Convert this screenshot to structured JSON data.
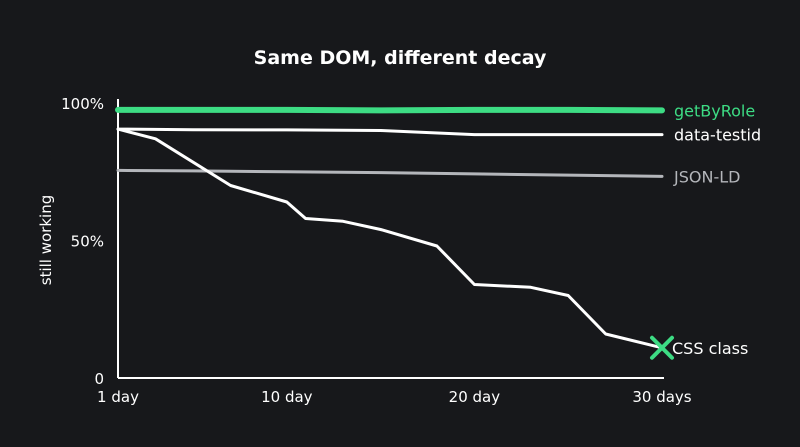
{
  "chart_data": {
    "type": "line",
    "title": "Same DOM, different decay",
    "xlabel": "",
    "ylabel": "still working",
    "xlim": [
      1,
      30
    ],
    "ylim": [
      0,
      100
    ],
    "x_ticks": [
      {
        "value": 1,
        "label": "1 day"
      },
      {
        "value": 10,
        "label": "10 day"
      },
      {
        "value": 20,
        "label": "20 day"
      },
      {
        "value": 30,
        "label": "30 days"
      }
    ],
    "y_ticks": [
      {
        "value": 0,
        "label": "0"
      },
      {
        "value": 50,
        "label": "50%"
      },
      {
        "value": 100,
        "label": "100%"
      }
    ],
    "grid": false,
    "legend": "inline-right",
    "series": [
      {
        "name": "getByRole",
        "color": "#3ddc84",
        "x": [
          1,
          5,
          10,
          15,
          20,
          25,
          30
        ],
        "y": [
          97.5,
          97.5,
          97.5,
          97.3,
          97.5,
          97.5,
          97.3
        ]
      },
      {
        "name": "data-testid",
        "color": "#ffffff",
        "x": [
          1,
          5,
          10,
          15,
          20,
          25,
          30
        ],
        "y": [
          90.5,
          90.3,
          90.2,
          90,
          88.5,
          88.5,
          88.5
        ]
      },
      {
        "name": "JSON-LD",
        "color": "#b4b6bb",
        "x": [
          1,
          5,
          10,
          15,
          20,
          25,
          30
        ],
        "y": [
          75.5,
          75.3,
          75,
          74.7,
          74.2,
          73.8,
          73.3
        ]
      },
      {
        "name": "CSS class",
        "color": "#ffffff",
        "marker": "x-icon",
        "marker_color": "#3ddc84",
        "x": [
          1,
          3,
          7,
          10,
          11,
          13,
          15,
          18,
          20,
          23,
          25,
          27,
          30
        ],
        "y": [
          90.5,
          87,
          70,
          64,
          58,
          57,
          54,
          48,
          34,
          33,
          30,
          16,
          11
        ]
      }
    ]
  }
}
